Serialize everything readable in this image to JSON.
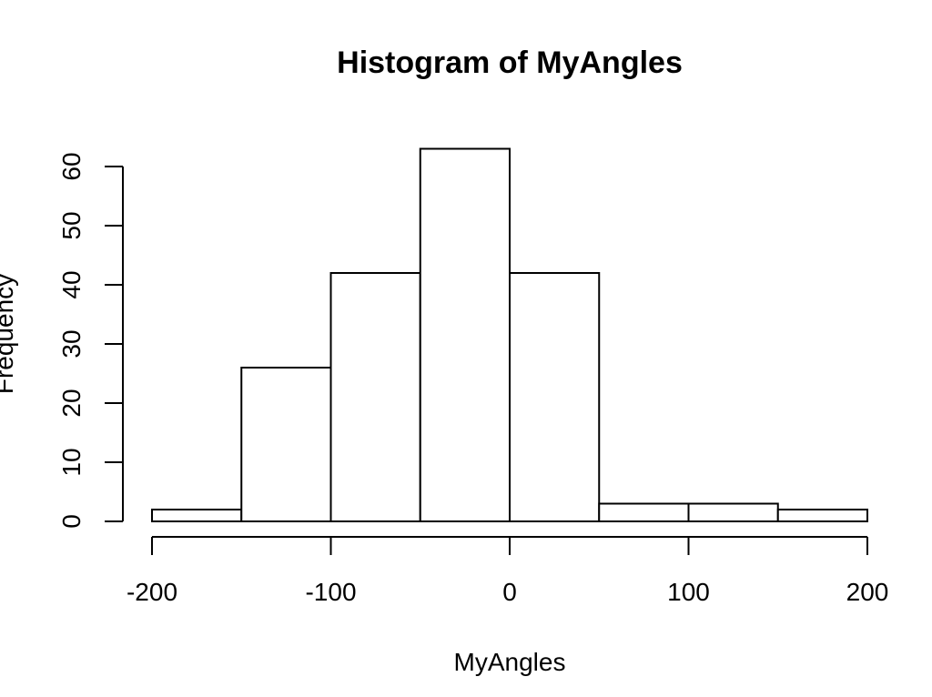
{
  "chart_data": {
    "type": "bar",
    "title": "Histogram of MyAngles",
    "xlabel": "MyAngles",
    "ylabel": "Frequency",
    "bins": [
      {
        "start": -200,
        "end": -150,
        "count": 2
      },
      {
        "start": -150,
        "end": -100,
        "count": 26
      },
      {
        "start": -100,
        "end": -50,
        "count": 42
      },
      {
        "start": -50,
        "end": 0,
        "count": 63
      },
      {
        "start": 0,
        "end": 50,
        "count": 42
      },
      {
        "start": 50,
        "end": 100,
        "count": 3
      },
      {
        "start": 100,
        "end": 150,
        "count": 3
      },
      {
        "start": 150,
        "end": 200,
        "count": 2
      }
    ],
    "xlim": [
      -200,
      200
    ],
    "ylim": [
      0,
      63
    ],
    "x_ticks": [
      -200,
      -100,
      0,
      100,
      200
    ],
    "y_ticks": [
      0,
      10,
      20,
      30,
      40,
      50,
      60
    ],
    "grid": false,
    "colors": {
      "bar_fill": "#ffffff",
      "bar_stroke": "#000000"
    }
  }
}
